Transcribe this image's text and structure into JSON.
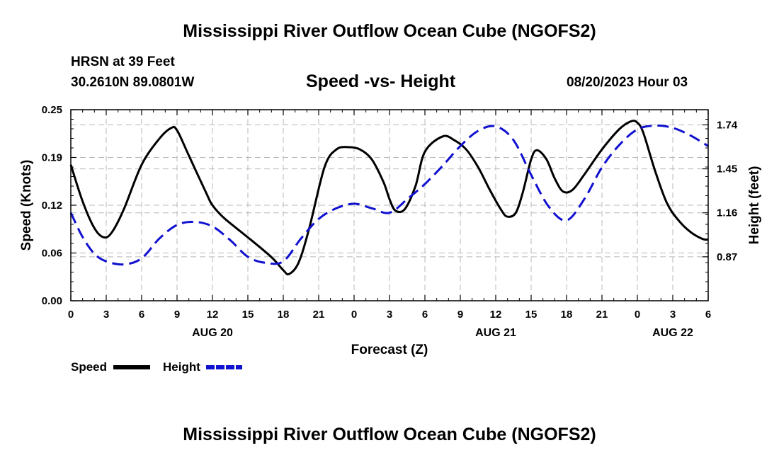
{
  "page": {
    "title_top": "Mississippi River Outflow Ocean Cube (NGOFS2)",
    "title_bottom": "Mississippi River Outflow Ocean Cube (NGOFS2)",
    "station": "HRSN at 39 Feet",
    "coordinates": "30.2610N  89.0801W",
    "subtitle": "Speed -vs- Height",
    "datetime": "08/20/2023 Hour 03"
  },
  "chart_data": {
    "type": "line",
    "title": "Speed -vs- Height",
    "xlabel": "Forecast (Z)",
    "ylabel": "Speed (Knots)",
    "y2label": "Height (feet)",
    "xlim": [
      0,
      54
    ],
    "ylim": [
      0,
      0.25
    ],
    "y2lim": [
      0.58,
      1.84
    ],
    "x_ticks": [
      0,
      3,
      6,
      9,
      12,
      15,
      18,
      21,
      24,
      27,
      30,
      33,
      36,
      39,
      42,
      45,
      48,
      51,
      54
    ],
    "x_tick_labels": [
      "0",
      "3",
      "6",
      "9",
      "12",
      "15",
      "18",
      "21",
      "0",
      "3",
      "6",
      "9",
      "12",
      "15",
      "18",
      "21",
      "0",
      "3",
      "6"
    ],
    "date_labels": [
      {
        "x": 12,
        "label": "AUG 20"
      },
      {
        "x": 36,
        "label": "AUG 21"
      },
      {
        "x": 51,
        "label": "AUG 22"
      }
    ],
    "y_ticks": [
      0,
      0.0625,
      0.125,
      0.1875,
      0.25
    ],
    "y_tick_labels": [
      "0.00",
      "0.06",
      "0.12",
      "0.19",
      "0.25"
    ],
    "y2_ticks": [
      0.87,
      1.16,
      1.45,
      1.74
    ],
    "y2_tick_labels": [
      "0.87",
      "1.16",
      "1.45",
      "1.74"
    ],
    "legend": [
      {
        "name": "Speed",
        "color": "#000000",
        "style": "solid"
      },
      {
        "name": "Height",
        "color": "#1010d0",
        "style": "dashed"
      }
    ],
    "series": [
      {
        "name": "Speed",
        "axis": "left",
        "color": "#000000",
        "x": [
          0,
          1,
          2,
          2.8,
          3.5,
          4.5,
          6,
          7.5,
          8.5,
          9,
          10,
          11.5,
          12,
          13,
          15,
          17,
          18,
          18.5,
          19.3,
          20.2,
          21.5,
          22.5,
          23.5,
          24.5,
          25.5,
          26.5,
          27,
          27.5,
          28.3,
          29.2,
          30,
          31.5,
          32.5,
          33.5,
          34.5,
          35.5,
          36.5,
          37,
          37.7,
          38.3,
          39,
          39.5,
          40.3,
          41,
          41.7,
          42.5,
          43.5,
          45,
          46.5,
          47.5,
          48,
          48.5,
          49.5,
          50.5,
          51.5,
          52.5,
          53.5,
          54
        ],
        "values": [
          0.178,
          0.13,
          0.095,
          0.083,
          0.09,
          0.12,
          0.178,
          0.212,
          0.226,
          0.223,
          0.19,
          0.14,
          0.125,
          0.108,
          0.083,
          0.057,
          0.04,
          0.035,
          0.05,
          0.095,
          0.175,
          0.198,
          0.201,
          0.198,
          0.185,
          0.155,
          0.133,
          0.118,
          0.12,
          0.15,
          0.195,
          0.215,
          0.21,
          0.198,
          0.175,
          0.145,
          0.118,
          0.11,
          0.115,
          0.142,
          0.185,
          0.197,
          0.185,
          0.16,
          0.143,
          0.145,
          0.165,
          0.198,
          0.225,
          0.235,
          0.233,
          0.22,
          0.17,
          0.128,
          0.105,
          0.09,
          0.081,
          0.08
        ]
      },
      {
        "name": "Height",
        "axis": "right",
        "color": "#1010d0",
        "x": [
          0,
          1,
          2,
          3,
          4.5,
          6,
          7.5,
          9,
          10.5,
          12,
          13.5,
          15,
          16.5,
          18,
          19.5,
          21,
          22.5,
          24,
          25.5,
          27,
          28.5,
          30,
          31.5,
          33,
          34.5,
          36,
          37.5,
          39,
          40.5,
          42,
          43.5,
          45,
          46.5,
          48,
          49.5,
          51,
          52.5,
          54
        ],
        "values": [
          1.16,
          1.0,
          0.89,
          0.84,
          0.82,
          0.86,
          0.99,
          1.08,
          1.1,
          1.07,
          0.98,
          0.87,
          0.83,
          0.84,
          0.99,
          1.12,
          1.19,
          1.22,
          1.19,
          1.16,
          1.25,
          1.35,
          1.47,
          1.6,
          1.7,
          1.73,
          1.64,
          1.41,
          1.2,
          1.11,
          1.25,
          1.46,
          1.61,
          1.71,
          1.735,
          1.72,
          1.67,
          1.6
        ]
      }
    ]
  }
}
